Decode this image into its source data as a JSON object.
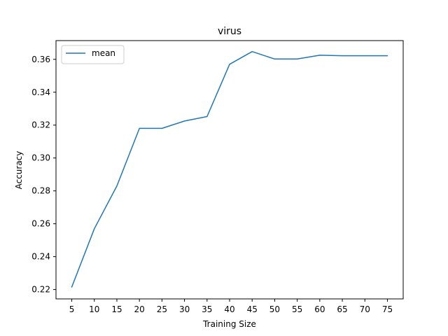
{
  "chart_data": {
    "type": "line",
    "title": "virus",
    "xlabel": "Training Size",
    "ylabel": "Accuracy",
    "x": [
      5,
      10,
      15,
      20,
      25,
      30,
      35,
      40,
      45,
      50,
      55,
      60,
      65,
      70,
      75
    ],
    "xticks": [
      "5",
      "10",
      "15",
      "20",
      "25",
      "30",
      "35",
      "40",
      "45",
      "50",
      "55",
      "60",
      "65",
      "70",
      "75"
    ],
    "yticks": [
      "0.22",
      "0.24",
      "0.26",
      "0.28",
      "0.30",
      "0.32",
      "0.34",
      "0.36"
    ],
    "ytick_values": [
      0.22,
      0.24,
      0.26,
      0.28,
      0.3,
      0.32,
      0.34,
      0.36
    ],
    "xlim": [
      1.5,
      78.5
    ],
    "ylim": [
      0.2143,
      0.3714
    ],
    "grid": false,
    "legend_position": "upper-left",
    "series": [
      {
        "name": "mean",
        "color": "#1f77b4",
        "values": [
          0.2215,
          0.257,
          0.283,
          0.318,
          0.318,
          0.3225,
          0.3252,
          0.357,
          0.3647,
          0.3602,
          0.3602,
          0.3625,
          0.3622,
          0.3622,
          0.3622
        ]
      }
    ]
  }
}
